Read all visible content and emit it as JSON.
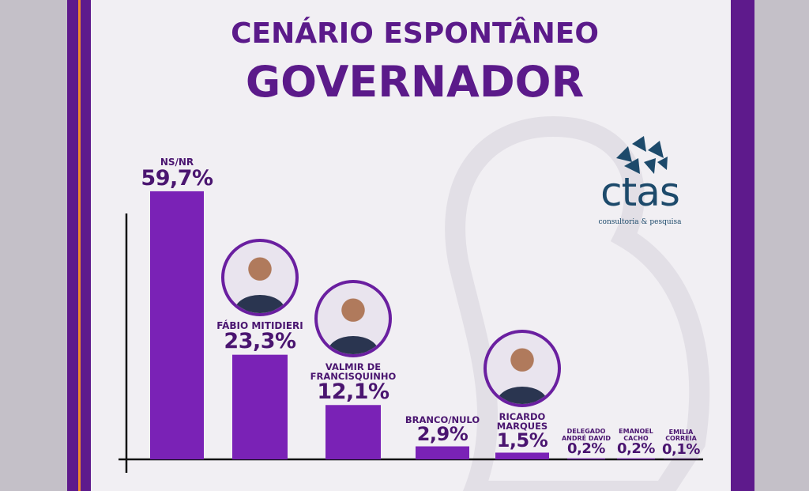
{
  "chart_data": {
    "type": "bar",
    "title": "CENÁRIO ESPONTÂNEO",
    "subtitle": "GOVERNADOR",
    "categories": [
      "NS/NR",
      "FÁBIO MITIDIERI",
      "VALMIR DE FRANCISQUINHO",
      "BRANCO/NULO",
      "RICARDO MARQUES",
      "DELEGADO ANDRÉ DAVID",
      "EMANOEL CACHO",
      "EMILIA CORREIA"
    ],
    "values": [
      59.7,
      23.3,
      12.1,
      2.9,
      1.5,
      0.2,
      0.2,
      0.1
    ],
    "value_labels": [
      "59,7%",
      "23,3%",
      "12,1%",
      "2,9%",
      "1,5%",
      "0,2%",
      "0,2%",
      "0,1%"
    ],
    "color": "#7a22b6"
  },
  "logo": {
    "name": "ctas",
    "tagline": "consultoria & pesquisa"
  }
}
